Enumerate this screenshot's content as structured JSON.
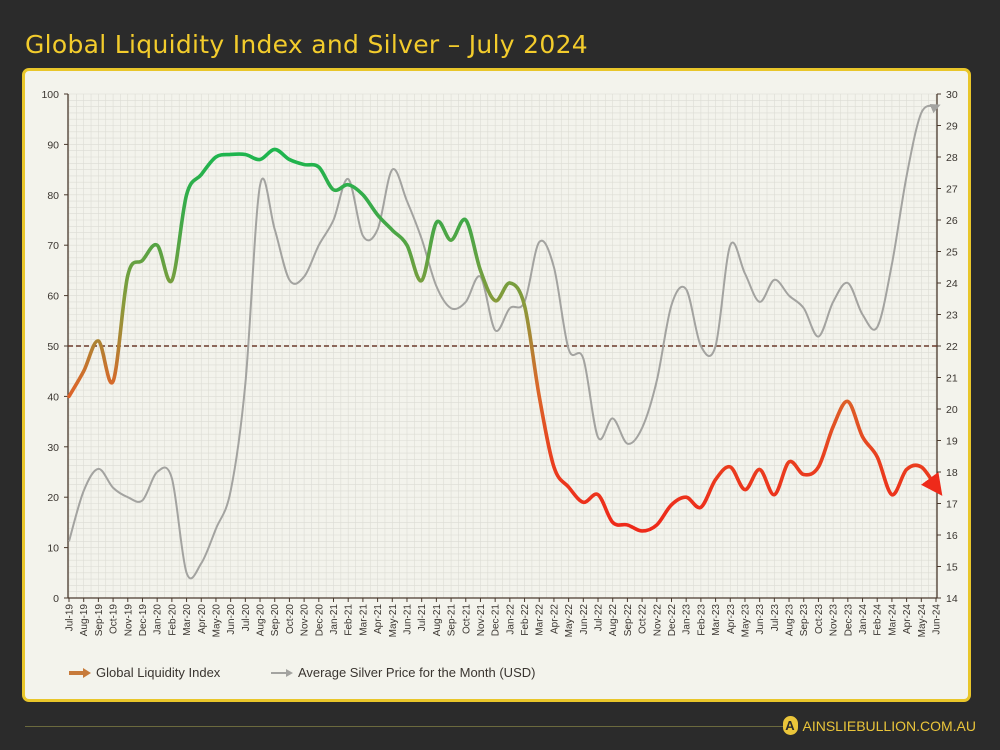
{
  "title": "Global Liquidity Index and Silver – July 2024",
  "footer": {
    "brand": "AINSLIEBULLION.COM.AU",
    "logo_letter": "A"
  },
  "colors": {
    "background": "#2b2b2b",
    "accent": "#f3cc2c",
    "gli_high": "#22b24c",
    "gli_mid": "#8a9a3a",
    "gli_low_orange": "#d9682a",
    "gli_low_red": "#ee2a1a",
    "silver": "#a3a3a0",
    "reference_line": "#6b3b2b"
  },
  "chart_data": {
    "type": "line",
    "title": "Global Liquidity Index and Silver – July 2024",
    "categories": [
      "Jul-19",
      "Aug-19",
      "Sep-19",
      "Oct-19",
      "Nov-19",
      "Dec-19",
      "Jan-20",
      "Feb-20",
      "Mar-20",
      "Apr-20",
      "May-20",
      "Jun-20",
      "Jul-20",
      "Aug-20",
      "Sep-20",
      "Oct-20",
      "Nov-20",
      "Dec-20",
      "Jan-21",
      "Feb-21",
      "Mar-21",
      "Apr-21",
      "May-21",
      "Jun-21",
      "Jul-21",
      "Aug-21",
      "Sep-21",
      "Oct-21",
      "Nov-21",
      "Dec-21",
      "Jan-22",
      "Feb-22",
      "Mar-22",
      "Apr-22",
      "May-22",
      "Jun-22",
      "Jul-22",
      "Aug-22",
      "Sep-22",
      "Oct-22",
      "Nov-22",
      "Dec-22",
      "Jan-23",
      "Feb-23",
      "Mar-23",
      "Apr-23",
      "May-23",
      "Jun-23",
      "Jul-23",
      "Aug-23",
      "Sep-23",
      "Oct-23",
      "Nov-23",
      "Dec-23",
      "Jan-24",
      "Feb-24",
      "Mar-24",
      "Apr-24",
      "May-24",
      "Jun-24"
    ],
    "series": [
      {
        "name": "Global Liquidity Index",
        "axis": "left",
        "values": [
          40,
          45,
          51,
          43,
          64,
          67,
          70,
          63,
          80,
          84,
          87.5,
          88,
          88,
          87,
          89,
          87,
          86,
          85.5,
          81,
          82,
          80,
          76,
          73,
          70,
          63,
          74.5,
          71,
          75,
          65,
          59,
          62.5,
          58,
          40,
          26,
          22,
          19,
          20.5,
          15,
          14.5,
          13.3,
          14.5,
          18.5,
          20,
          18,
          23.5,
          26,
          21.5,
          25.5,
          20.5,
          27,
          24.5,
          26,
          34,
          39,
          32,
          28,
          20.5,
          25.5,
          26,
          22
        ]
      },
      {
        "name": "Average Silver Price for the Month (USD)",
        "axis": "right",
        "values": [
          15.8,
          17.4,
          18.1,
          17.5,
          17.2,
          17.1,
          18.0,
          17.8,
          14.8,
          15.1,
          16.2,
          17.4,
          20.8,
          27.1,
          25.7,
          24.1,
          24.2,
          25.2,
          26.0,
          27.3,
          25.5,
          25.7,
          27.6,
          26.6,
          25.4,
          23.9,
          23.2,
          23.4,
          24.2,
          22.5,
          23.2,
          23.4,
          25.3,
          24.5,
          21.9,
          21.6,
          19.1,
          19.7,
          18.9,
          19.4,
          20.9,
          23.3,
          23.8,
          22.0,
          22.0,
          25.2,
          24.3,
          23.4,
          24.1,
          23.6,
          23.2,
          22.3,
          23.4,
          24.0,
          23.0,
          22.6,
          24.6,
          27.4,
          29.4,
          29.6
        ]
      }
    ],
    "reference_line": {
      "axis": "left",
      "value": 50,
      "style": "dashed"
    },
    "ylim_left": [
      0,
      100
    ],
    "yticks_left": [
      0,
      10,
      20,
      30,
      40,
      50,
      60,
      70,
      80,
      90,
      100
    ],
    "ylim_right": [
      14,
      30
    ],
    "yticks_right": [
      14,
      15,
      16,
      17,
      18,
      19,
      20,
      21,
      22,
      23,
      24,
      25,
      26,
      27,
      28,
      29,
      30
    ],
    "grid": true,
    "legend_position": "bottom-left"
  }
}
